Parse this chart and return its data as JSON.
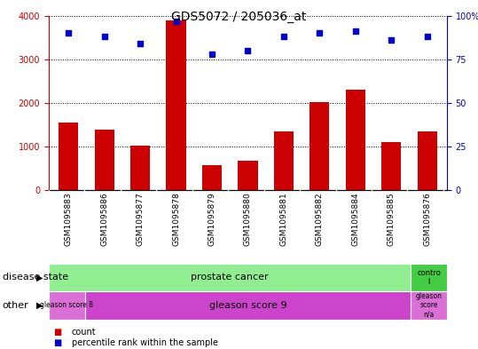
{
  "title": "GDS5072 / 205036_at",
  "samples": [
    "GSM1095883",
    "GSM1095886",
    "GSM1095877",
    "GSM1095878",
    "GSM1095879",
    "GSM1095880",
    "GSM1095881",
    "GSM1095882",
    "GSM1095884",
    "GSM1095885",
    "GSM1095876"
  ],
  "counts": [
    1550,
    1380,
    1020,
    3900,
    580,
    680,
    1340,
    2010,
    2310,
    1100,
    1340
  ],
  "percentiles": [
    90,
    88,
    84,
    97,
    78,
    80,
    88,
    90,
    91,
    86,
    88
  ],
  "ylim_left": [
    0,
    4000
  ],
  "ylim_right": [
    0,
    100
  ],
  "yticks_left": [
    0,
    1000,
    2000,
    3000,
    4000
  ],
  "yticks_right": [
    0,
    25,
    50,
    75,
    100
  ],
  "bar_color": "#cc0000",
  "dot_color": "#0000cc",
  "disease_state_colors": [
    "#90ee90",
    "#44cc44"
  ],
  "other_colors_gs8": "#da70d6",
  "other_colors_gs9": "#cc44cc",
  "other_colors_gsna": "#da70d6",
  "legend_count_label": "count",
  "legend_pct_label": "percentile rank within the sample",
  "bg_color": "#ffffff",
  "tick_area_color": "#d3d3d3",
  "title_fontsize": 10,
  "axis_fontsize": 7,
  "label_fontsize": 8,
  "row_label_fontsize": 8
}
